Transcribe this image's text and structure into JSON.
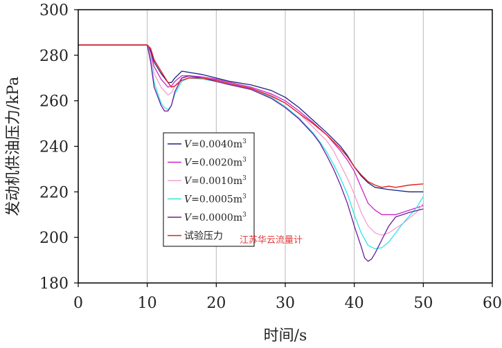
{
  "chart_data": {
    "type": "line",
    "xlabel": "时间/s",
    "ylabel": "发动机供油压力/kPa",
    "xlim": [
      0,
      60
    ],
    "ylim": [
      180,
      300
    ],
    "x_ticks": [
      0,
      10,
      20,
      30,
      40,
      50,
      60
    ],
    "y_ticks": [
      180,
      200,
      220,
      240,
      260,
      280,
      300
    ],
    "grid": "vertical",
    "legend_position": "center-left",
    "watermark": "江苏华云流量计",
    "series": [
      {
        "name": "V=0.0040m³",
        "name_html": {
          "italic": "V",
          "rest": "=0.0040m",
          "sup": "3"
        },
        "color": "#1a237e",
        "points": [
          [
            0,
            284.5
          ],
          [
            10,
            284.5
          ],
          [
            10.5,
            282
          ],
          [
            11,
            277
          ],
          [
            12,
            272
          ],
          [
            13,
            268
          ],
          [
            13.5,
            268
          ],
          [
            14,
            270
          ],
          [
            15,
            273
          ],
          [
            16,
            272.5
          ],
          [
            18,
            271.5
          ],
          [
            20,
            270
          ],
          [
            22,
            268.5
          ],
          [
            25,
            267
          ],
          [
            28,
            264.5
          ],
          [
            30,
            261.5
          ],
          [
            32,
            257
          ],
          [
            34,
            251.5
          ],
          [
            36,
            246
          ],
          [
            38,
            240
          ],
          [
            39,
            236
          ],
          [
            40,
            231
          ],
          [
            41,
            227
          ],
          [
            42,
            224
          ],
          [
            43,
            222
          ],
          [
            45,
            221
          ],
          [
            48,
            220
          ],
          [
            50,
            220
          ]
        ]
      },
      {
        "name": "V=0.0020m³",
        "name_html": {
          "italic": "V",
          "rest": "=0.0020m",
          "sup": "3"
        },
        "color": "#cc22cc",
        "points": [
          [
            0,
            284.5
          ],
          [
            10,
            284.5
          ],
          [
            10.5,
            281
          ],
          [
            11,
            275
          ],
          [
            12,
            269.5
          ],
          [
            13,
            266
          ],
          [
            13.5,
            266.5
          ],
          [
            14,
            268.5
          ],
          [
            15,
            271
          ],
          [
            16,
            271
          ],
          [
            18,
            270.5
          ],
          [
            20,
            269.5
          ],
          [
            22,
            268
          ],
          [
            25,
            266
          ],
          [
            28,
            263
          ],
          [
            30,
            260
          ],
          [
            32,
            255.5
          ],
          [
            34,
            250.5
          ],
          [
            36,
            245
          ],
          [
            38,
            238
          ],
          [
            39,
            234
          ],
          [
            40,
            229
          ],
          [
            41,
            222
          ],
          [
            42,
            215
          ],
          [
            43,
            212
          ],
          [
            44,
            210
          ],
          [
            46,
            210
          ],
          [
            48,
            212
          ],
          [
            50,
            214
          ]
        ]
      },
      {
        "name": "V=0.0010m³",
        "name_html": {
          "italic": "V",
          "rest": "=0.0010m",
          "sup": "3"
        },
        "color": "#f2a0d0",
        "points": [
          [
            0,
            284.5
          ],
          [
            10,
            284.5
          ],
          [
            10.5,
            280
          ],
          [
            11,
            272
          ],
          [
            12,
            266
          ],
          [
            13,
            262.5
          ],
          [
            13.5,
            263.5
          ],
          [
            14,
            266.5
          ],
          [
            15,
            270
          ],
          [
            16,
            270.5
          ],
          [
            18,
            270
          ],
          [
            20,
            269
          ],
          [
            22,
            267.5
          ],
          [
            25,
            265.5
          ],
          [
            28,
            262.5
          ],
          [
            30,
            259
          ],
          [
            32,
            254.5
          ],
          [
            34,
            248.5
          ],
          [
            36,
            242.5
          ],
          [
            37,
            238
          ],
          [
            38,
            232
          ],
          [
            39,
            226
          ],
          [
            40,
            219
          ],
          [
            41,
            211
          ],
          [
            42,
            205
          ],
          [
            43,
            202
          ],
          [
            44,
            201
          ],
          [
            45,
            202
          ],
          [
            47,
            206
          ],
          [
            49,
            211
          ],
          [
            50,
            215
          ]
        ]
      },
      {
        "name": "V=0.0005m³",
        "name_html": {
          "italic": "V",
          "rest": "=0.0005m",
          "sup": "3"
        },
        "color": "#2de6e6",
        "points": [
          [
            0,
            284.5
          ],
          [
            10,
            284.5
          ],
          [
            10.5,
            278
          ],
          [
            11,
            268
          ],
          [
            12,
            259
          ],
          [
            12.5,
            257
          ],
          [
            13,
            256
          ],
          [
            13.5,
            258
          ],
          [
            14,
            263
          ],
          [
            15,
            268.5
          ],
          [
            16,
            270
          ],
          [
            18,
            269.5
          ],
          [
            20,
            268.5
          ],
          [
            22,
            267
          ],
          [
            25,
            265
          ],
          [
            28,
            261.5
          ],
          [
            30,
            257.5
          ],
          [
            32,
            252.5
          ],
          [
            34,
            246
          ],
          [
            35,
            242
          ],
          [
            36,
            237.5
          ],
          [
            37,
            232
          ],
          [
            38,
            226
          ],
          [
            39,
            219
          ],
          [
            40,
            210
          ],
          [
            41,
            202
          ],
          [
            42,
            196.5
          ],
          [
            43,
            195
          ],
          [
            44,
            195.5
          ],
          [
            45,
            198
          ],
          [
            47,
            206
          ],
          [
            49,
            213
          ],
          [
            50,
            218
          ]
        ]
      },
      {
        "name": "V=0.0000m³",
        "name_html": {
          "italic": "V",
          "rest": "=0.0000m",
          "sup": "3"
        },
        "color": "#6a1b9a",
        "points": [
          [
            0,
            284.5
          ],
          [
            10,
            284.5
          ],
          [
            10.5,
            277
          ],
          [
            11,
            266
          ],
          [
            12,
            258
          ],
          [
            12.5,
            255.5
          ],
          [
            13,
            255.5
          ],
          [
            13.5,
            258
          ],
          [
            14,
            264
          ],
          [
            15,
            270
          ],
          [
            16,
            271
          ],
          [
            18,
            270
          ],
          [
            20,
            268.5
          ],
          [
            22,
            267
          ],
          [
            25,
            265
          ],
          [
            28,
            261
          ],
          [
            30,
            257
          ],
          [
            32,
            252
          ],
          [
            34,
            245.5
          ],
          [
            35,
            241.5
          ],
          [
            36,
            236
          ],
          [
            37,
            230
          ],
          [
            38,
            223
          ],
          [
            39,
            215
          ],
          [
            40,
            205
          ],
          [
            41,
            196
          ],
          [
            41.5,
            191
          ],
          [
            42,
            189.5
          ],
          [
            42.5,
            190.5
          ],
          [
            43,
            193
          ],
          [
            44,
            199
          ],
          [
            45,
            205
          ],
          [
            46,
            209
          ],
          [
            48,
            211
          ],
          [
            50,
            212.5
          ]
        ]
      },
      {
        "name": "试验压力",
        "color": "#e02020",
        "points": [
          [
            0,
            284.5
          ],
          [
            10,
            284.5
          ],
          [
            10.5,
            283
          ],
          [
            11,
            278
          ],
          [
            12,
            273
          ],
          [
            13,
            268
          ],
          [
            13.5,
            266
          ],
          [
            14,
            266.5
          ],
          [
            15,
            269
          ],
          [
            16,
            270
          ],
          [
            18,
            270
          ],
          [
            20,
            269
          ],
          [
            22,
            267.5
          ],
          [
            25,
            265.5
          ],
          [
            28,
            262
          ],
          [
            30,
            259
          ],
          [
            32,
            254.5
          ],
          [
            34,
            250
          ],
          [
            36,
            245
          ],
          [
            37,
            242
          ],
          [
            38,
            239
          ],
          [
            39,
            235.5
          ],
          [
            40,
            231
          ],
          [
            41,
            227.5
          ],
          [
            42,
            224.5
          ],
          [
            43,
            223
          ],
          [
            44,
            222
          ],
          [
            45,
            222.5
          ],
          [
            46,
            222
          ],
          [
            48,
            223
          ],
          [
            50,
            223.5
          ]
        ]
      }
    ]
  }
}
